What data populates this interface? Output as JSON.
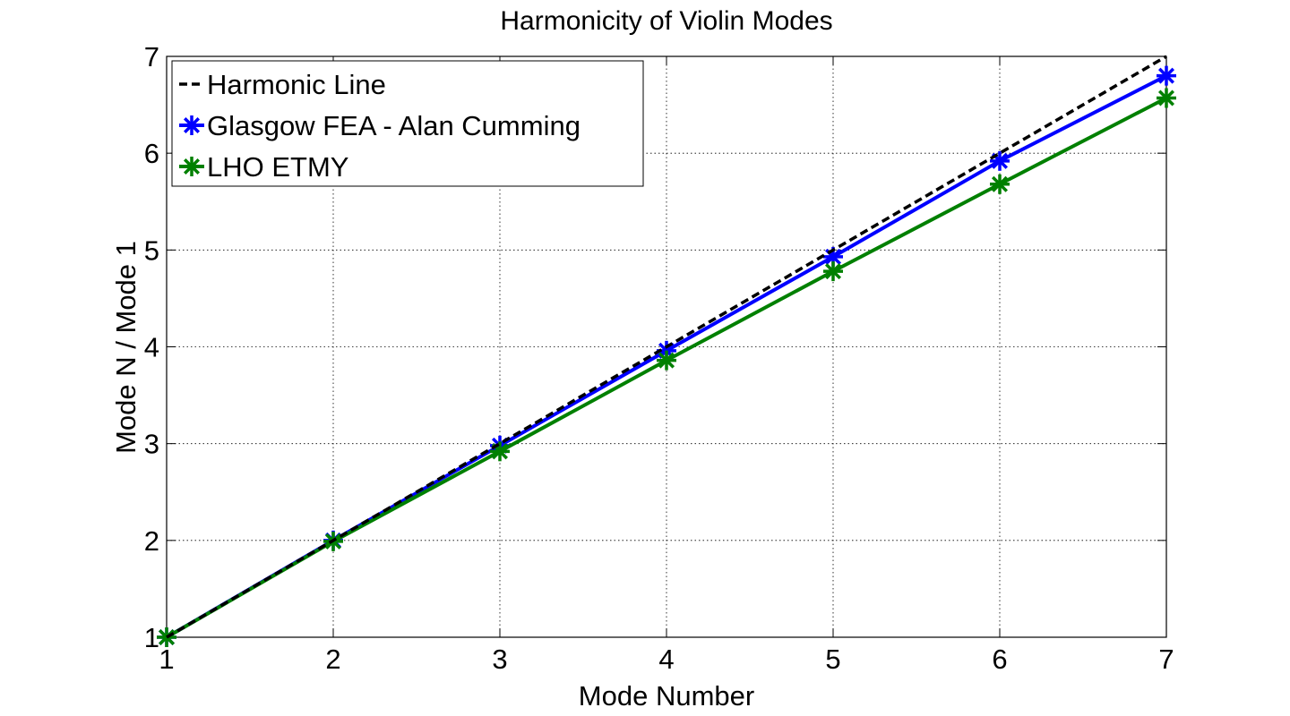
{
  "chart_data": {
    "type": "line",
    "title": "Harmonicity of Violin Modes",
    "xlabel": "Mode Number",
    "ylabel": "Mode N / Mode 1",
    "xlim": [
      1,
      7
    ],
    "ylim": [
      1,
      7
    ],
    "xticks": [
      1,
      2,
      3,
      4,
      5,
      6,
      7
    ],
    "yticks": [
      1,
      2,
      3,
      4,
      5,
      6,
      7
    ],
    "grid": true,
    "legend_position": "top-left",
    "x": [
      1,
      2,
      3,
      4,
      5,
      6,
      7
    ],
    "series": [
      {
        "name": "Harmonic Line",
        "values": [
          1,
          2,
          3,
          4,
          5,
          6,
          7
        ],
        "color": "#000000",
        "style": "dashed",
        "marker": "none"
      },
      {
        "name": "Glasgow FEA - Alan Cumming",
        "values": [
          1,
          2.0,
          2.98,
          3.96,
          4.93,
          5.92,
          6.8
        ],
        "color": "#0000ff",
        "style": "solid",
        "marker": "asterisk"
      },
      {
        "name": "LHO ETMY",
        "values": [
          1,
          1.99,
          2.92,
          3.86,
          4.78,
          5.68,
          6.57
        ],
        "color": "#008000",
        "style": "solid",
        "marker": "asterisk"
      }
    ]
  }
}
